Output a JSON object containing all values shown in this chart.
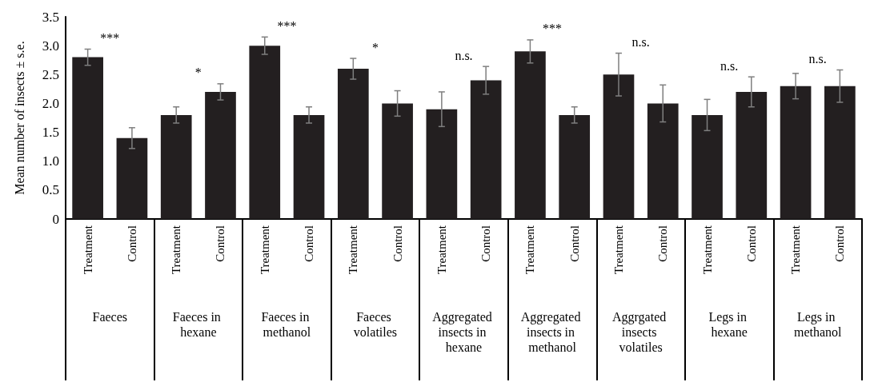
{
  "chart_data": {
    "type": "bar",
    "ylabel": "Mean number of insects ± s.e.",
    "categories": [
      "Treatment",
      "Control",
      "Treatment",
      "Control",
      "Treatment",
      "Control",
      "Treatment",
      "Control",
      "Treatment",
      "Control",
      "Treatment",
      "Control",
      "Treatment",
      "Control",
      "Treatment",
      "Control",
      "Treatment",
      "Control"
    ],
    "values": [
      2.8,
      1.4,
      1.8,
      2.2,
      3.0,
      1.8,
      2.6,
      2.0,
      1.9,
      2.4,
      2.9,
      1.8,
      2.5,
      2.0,
      1.8,
      2.2,
      2.3,
      2.3
    ],
    "errors": [
      0.14,
      0.18,
      0.14,
      0.14,
      0.15,
      0.14,
      0.18,
      0.22,
      0.3,
      0.24,
      0.2,
      0.14,
      0.37,
      0.32,
      0.27,
      0.26,
      0.22,
      0.28
    ],
    "color": "#231f20",
    "ylim": [
      0,
      3.5
    ],
    "yticks": [
      0,
      {
        "value": 0.5,
        "label": "0.5"
      },
      {
        "value": 1,
        "label": "1.0"
      },
      {
        "value": 1.5,
        "label": "1.5"
      },
      {
        "value": 2,
        "label": "2.0"
      },
      {
        "value": 2.5,
        "label": "2.5"
      },
      {
        "value": 3,
        "label": "3.0"
      },
      {
        "value": 3.5,
        "label": "3.5"
      }
    ],
    "annotations": [
      "***",
      "*",
      "***",
      "*",
      "n.s.",
      "***",
      "n.s.",
      "n.s.",
      "n.s.",
      "Faeces",
      "Faeces in hexane",
      "Faeces in methanol",
      "Faeces volatiles",
      "Aggregated insects in hexane",
      "Aggregated insects in methanol",
      "Aggrgated insects volatiles",
      "Legs in hexane",
      "Legs in methanol"
    ],
    "grid": false
  }
}
